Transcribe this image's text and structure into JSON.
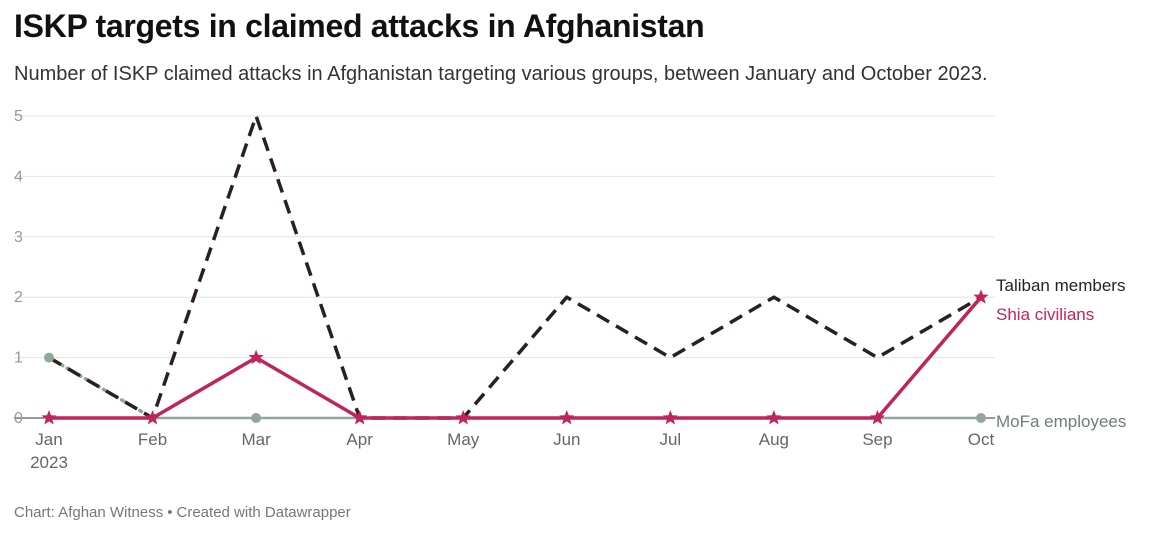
{
  "title": "ISKP targets in claimed attacks in Afghanistan",
  "subtitle": "Number of ISKP claimed attacks in Afghanistan targeting various groups, between January and October 2023.",
  "footer": {
    "source": "Chart: Afghan Witness",
    "separator": "•",
    "credit": "Created with Datawrapper"
  },
  "chart_data": {
    "type": "line",
    "categories": [
      "Jan",
      "Feb",
      "Mar",
      "Apr",
      "May",
      "Jun",
      "Jul",
      "Aug",
      "Sep",
      "Oct"
    ],
    "x_sublabels": {
      "Jan": "2023"
    },
    "ylim": [
      0,
      5
    ],
    "yticks": [
      0,
      1,
      2,
      3,
      4,
      5
    ],
    "grid": true,
    "legend": "inline-right",
    "series": [
      {
        "name": "Taliban members",
        "values": [
          1,
          0,
          5,
          0,
          0,
          2,
          1,
          2,
          1,
          2
        ],
        "color": "#2a211c",
        "style": "dashed",
        "marker": "none"
      },
      {
        "name": "Shia civilians",
        "values": [
          0,
          0,
          1,
          0,
          0,
          0,
          0,
          0,
          0,
          2
        ],
        "color": "#c0245c",
        "style": "solid",
        "marker": "star"
      },
      {
        "name": "MoFa employees",
        "values": [
          1,
          0,
          0,
          0,
          0,
          0,
          0,
          0,
          0,
          0
        ],
        "color": "#8fa89a",
        "style": "solid-dotted",
        "marker": "circle"
      }
    ]
  }
}
